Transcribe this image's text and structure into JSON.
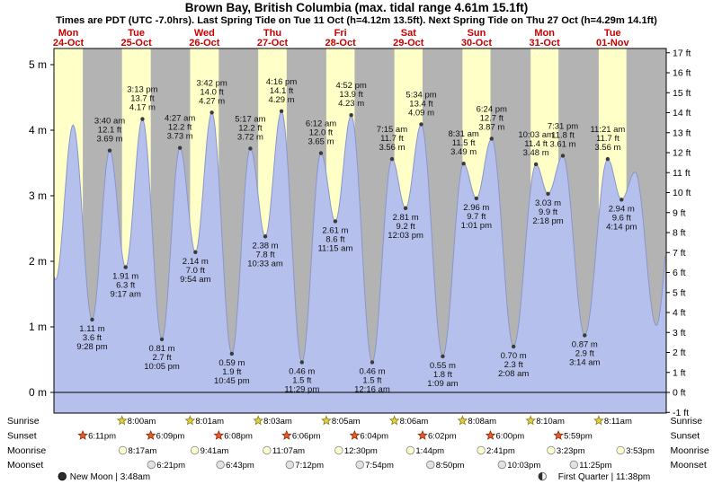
{
  "title": "Brown Bay, British Columbia (max. tidal range 4.61m 15.1ft)",
  "subtitle": "Times are PDT (UTC -7.0hrs). Last Spring Tide on Tue 11 Oct (h=4.12m 13.5ft). Next Spring Tide on Thu 27 Oct (h=4.29m 14.1ft)",
  "days": [
    {
      "name": "Mon",
      "date": "24-Oct"
    },
    {
      "name": "Tue",
      "date": "25-Oct"
    },
    {
      "name": "Wed",
      "date": "26-Oct"
    },
    {
      "name": "Thu",
      "date": "27-Oct"
    },
    {
      "name": "Fri",
      "date": "28-Oct"
    },
    {
      "name": "Sat",
      "date": "29-Oct"
    },
    {
      "name": "Sun",
      "date": "30-Oct"
    },
    {
      "name": "Mon",
      "date": "31-Oct"
    },
    {
      "name": "Tue",
      "date": "01-Nov"
    }
  ],
  "axis": {
    "left_labels": [
      "5 m",
      "4 m",
      "3 m",
      "2 m",
      "1 m",
      "0 m"
    ],
    "right_labels": [
      "17 ft",
      "16 ft",
      "15 ft",
      "14 ft",
      "13 ft",
      "12 ft",
      "11 ft",
      "10 ft",
      "9 ft",
      "8 ft",
      "7 ft",
      "6 ft",
      "5 ft",
      "4 ft",
      "3 ft",
      "2 ft",
      "1 ft",
      "0 ft",
      "-1 ft"
    ]
  },
  "chart_data": {
    "type": "area",
    "title": "Tide height curve (m / ft) over 9 days",
    "y_range_m": [
      -0.3,
      5.5
    ],
    "colors": {
      "day_band": "#ffffc8",
      "night_band": "#b3b3b3",
      "tide_fill": "#b6c0ec",
      "tide_stroke": "#8a96cc",
      "day_label_red": "#cc0000"
    },
    "tide_events": [
      {
        "t": -5.5,
        "type": "H",
        "h": 3.6
      },
      {
        "t": 0.6,
        "type": "L",
        "h": 1.72
      },
      {
        "t": 6.75,
        "type": "H",
        "h": 4.08
      },
      {
        "t": 13.47,
        "type": "L",
        "h": 1.11,
        "lines": [
          "1.11 m",
          "3.6 ft",
          "9:28 pm"
        ]
      },
      {
        "t": 19.67,
        "type": "H",
        "h": 3.69,
        "lines": [
          "3:40 am",
          "12.1 ft",
          "3.69 m"
        ]
      },
      {
        "t": 25.28,
        "type": "L",
        "h": 1.91,
        "lines": [
          "1.91 m",
          "6.3 ft",
          "9:17 am"
        ]
      },
      {
        "t": 31.22,
        "type": "H",
        "h": 4.17,
        "lines": [
          "3:13 pm",
          "13.7 ft",
          "4.17 m"
        ]
      },
      {
        "t": 38.08,
        "type": "L",
        "h": 0.81,
        "lines": [
          "0.81 m",
          "2.7 ft",
          "10:05 pm"
        ]
      },
      {
        "t": 44.45,
        "type": "H",
        "h": 3.73,
        "lines": [
          "4:27 am",
          "12.2 ft",
          "3.73 m"
        ]
      },
      {
        "t": 49.9,
        "type": "L",
        "h": 2.14,
        "lines": [
          "2.14 m",
          "7.0 ft",
          "9:54 am"
        ]
      },
      {
        "t": 55.7,
        "type": "H",
        "h": 4.27,
        "lines": [
          "3:42 pm",
          "14.0 ft",
          "4.27 m"
        ]
      },
      {
        "t": 62.75,
        "type": "L",
        "h": 0.59,
        "lines": [
          "0.59 m",
          "1.9 ft",
          "10:45 pm"
        ]
      },
      {
        "t": 69.28,
        "type": "H",
        "h": 3.72,
        "lines": [
          "5:17 am",
          "12.2 ft",
          "3.72 m"
        ]
      },
      {
        "t": 74.55,
        "type": "L",
        "h": 2.38,
        "lines": [
          "2.38 m",
          "7.8 ft",
          "10:33 am"
        ]
      },
      {
        "t": 80.27,
        "type": "H",
        "h": 4.29,
        "lines": [
          "4:16 pm",
          "14.1 ft",
          "4.29 m"
        ]
      },
      {
        "t": 87.48,
        "type": "L",
        "h": 0.46,
        "lines": [
          "0.46 m",
          "1.5 ft",
          "11:29 pm"
        ]
      },
      {
        "t": 94.2,
        "type": "H",
        "h": 3.65,
        "lines": [
          "6:12 am",
          "12.0 ft",
          "3.65 m"
        ]
      },
      {
        "t": 99.25,
        "type": "L",
        "h": 2.61,
        "lines": [
          "2.61 m",
          "8.6 ft",
          "11:15 am"
        ]
      },
      {
        "t": 104.87,
        "type": "H",
        "h": 4.23,
        "lines": [
          "4:52 pm",
          "13.9 ft",
          "4.23 m"
        ]
      },
      {
        "t": 112.27,
        "type": "L",
        "h": 0.46,
        "lines": [
          "0.46 m",
          "1.5 ft",
          "12:16 am"
        ]
      },
      {
        "t": 119.25,
        "type": "H",
        "h": 3.56,
        "lines": [
          "7:15 am",
          "11.7 ft",
          "3.56 m"
        ]
      },
      {
        "t": 124.05,
        "type": "L",
        "h": 2.81,
        "lines": [
          "2.81 m",
          "9.2 ft",
          "12:03 pm"
        ]
      },
      {
        "t": 129.57,
        "type": "H",
        "h": 4.09,
        "lines": [
          "5:34 pm",
          "13.4 ft",
          "4.09 m"
        ]
      },
      {
        "t": 137.15,
        "type": "L",
        "h": 0.55,
        "lines": [
          "0.55 m",
          "1.8 ft",
          "1:09 am"
        ]
      },
      {
        "t": 144.52,
        "type": "H",
        "h": 3.49,
        "lines": [
          "8:31 am",
          "11.5 ft",
          "3.49 m"
        ]
      },
      {
        "t": 149.02,
        "type": "L",
        "h": 2.96,
        "lines": [
          "2.96 m",
          "9.7 ft",
          "1:01 pm"
        ]
      },
      {
        "t": 154.4,
        "type": "H",
        "h": 3.87,
        "lines": [
          "6:24 pm",
          "12.7 ft",
          "3.87 m"
        ]
      },
      {
        "t": 162.13,
        "type": "L",
        "h": 0.7,
        "lines": [
          "0.70 m",
          "2.3 ft",
          "2:08 am"
        ]
      },
      {
        "t": 170.05,
        "type": "H",
        "h": 3.48,
        "lines": [
          "10:03 am",
          "11.4 ft",
          "3.48 m"
        ]
      },
      {
        "t": 174.3,
        "type": "L",
        "h": 3.03,
        "lines": [
          "3.03 m",
          "9.9 ft",
          "2:18 pm"
        ]
      },
      {
        "t": 179.52,
        "type": "H",
        "h": 3.61,
        "lines": [
          "7:31 pm",
          "11.8 ft",
          "3.61 m"
        ]
      },
      {
        "t": 187.23,
        "type": "L",
        "h": 0.87,
        "lines": [
          "0.87 m",
          "2.9 ft",
          "3:14 am"
        ]
      },
      {
        "t": 195.35,
        "type": "H",
        "h": 3.56,
        "lines": [
          "11:21 am",
          "11.7 ft",
          "3.56 m"
        ]
      },
      {
        "t": 200.23,
        "type": "L",
        "h": 2.94,
        "lines": [
          "2.94 m",
          "9.6 ft",
          "4:14 pm"
        ]
      },
      {
        "t": 205,
        "type": "H",
        "h": 3.36
      },
      {
        "t": 212.5,
        "type": "L",
        "h": 1.02
      },
      {
        "t": 219,
        "type": "H",
        "h": 3.3
      }
    ]
  },
  "astro": {
    "row_labels": [
      "Sunrise",
      "Sunset",
      "Moonrise",
      "Moonset"
    ],
    "sunrise": [
      {
        "time": "8:00am",
        "t": 24.0
      },
      {
        "time": "8:01am",
        "t": 48.02
      },
      {
        "time": "8:03am",
        "t": 72.05
      },
      {
        "time": "8:05am",
        "t": 96.08
      },
      {
        "time": "8:06am",
        "t": 120.1
      },
      {
        "time": "8:08am",
        "t": 144.13
      },
      {
        "time": "8:10am",
        "t": 168.17
      },
      {
        "time": "8:11am",
        "t": 192.18
      }
    ],
    "sunset": [
      {
        "time": "6:11pm",
        "t": 10.18
      },
      {
        "time": "6:09pm",
        "t": 34.15
      },
      {
        "time": "6:08pm",
        "t": 58.13
      },
      {
        "time": "6:06pm",
        "t": 82.1
      },
      {
        "time": "6:04pm",
        "t": 106.07
      },
      {
        "time": "6:02pm",
        "t": 130.03
      },
      {
        "time": "6:00pm",
        "t": 154.0
      },
      {
        "time": "5:59pm",
        "t": 177.98
      }
    ],
    "moonrise": [
      {
        "time": "8:17am",
        "t": 24.28
      },
      {
        "time": "9:41am",
        "t": 49.68
      },
      {
        "time": "11:07am",
        "t": 75.12
      },
      {
        "time": "12:30pm",
        "t": 100.5
      },
      {
        "time": "1:44pm",
        "t": 125.73
      },
      {
        "time": "2:41pm",
        "t": 150.68
      },
      {
        "time": "3:23pm",
        "t": 175.38
      },
      {
        "time": "3:53pm",
        "t": 199.88
      }
    ],
    "moonset": [
      {
        "time": "6:21pm",
        "t": 34.35
      },
      {
        "time": "6:43pm",
        "t": 58.72
      },
      {
        "time": "7:12pm",
        "t": 83.2
      },
      {
        "time": "7:54pm",
        "t": 107.9
      },
      {
        "time": "8:50pm",
        "t": 132.83
      },
      {
        "time": "10:03pm",
        "t": 158.05
      },
      {
        "time": "11:25pm",
        "t": 183.42
      }
    ],
    "phases": [
      {
        "name": "New Moon",
        "time": "3:48am",
        "t": 19.8
      },
      {
        "name": "First Quarter",
        "time": "11:38pm",
        "t": 207.63
      }
    ]
  }
}
